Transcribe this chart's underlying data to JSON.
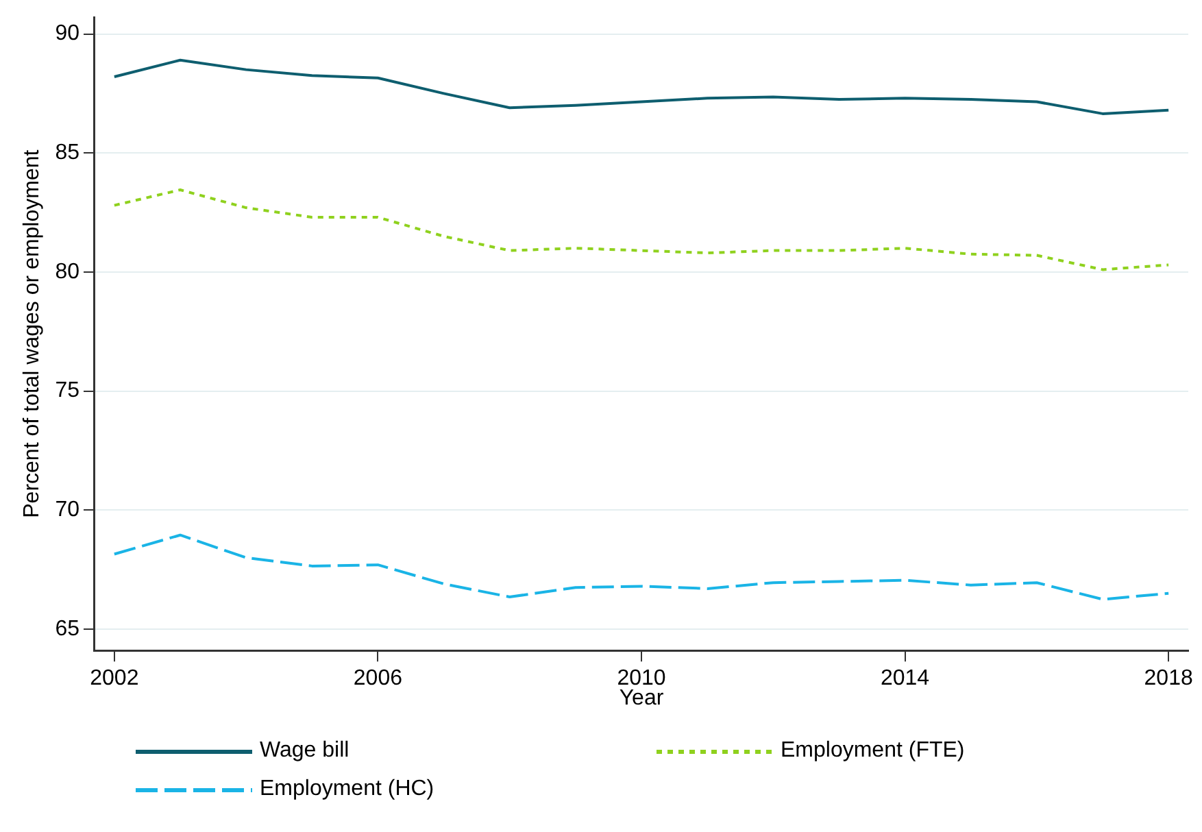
{
  "chart_data": {
    "type": "line",
    "xlabel": "Year",
    "ylabel": "Percent of total wages or employment",
    "x": [
      2002,
      2003,
      2004,
      2005,
      2006,
      2007,
      2008,
      2009,
      2010,
      2011,
      2012,
      2013,
      2014,
      2015,
      2016,
      2017,
      2018
    ],
    "series": [
      {
        "name": "Wage bill",
        "color": "#0e5e6f",
        "line_style": "solid",
        "values": [
          88.2,
          88.9,
          88.5,
          88.25,
          88.15,
          87.5,
          86.9,
          87.0,
          87.15,
          87.3,
          87.35,
          87.25,
          87.3,
          87.25,
          87.15,
          86.65,
          86.8
        ]
      },
      {
        "name": "Employment (FTE)",
        "color": "#8fd11e",
        "line_style": "dotted",
        "values": [
          82.8,
          83.45,
          82.7,
          82.3,
          82.3,
          81.5,
          80.9,
          81.0,
          80.9,
          80.8,
          80.9,
          80.9,
          81.0,
          80.75,
          80.7,
          80.1,
          80.3
        ]
      },
      {
        "name": "Employment (HC)",
        "color": "#1ab4e6",
        "line_style": "dashed",
        "values": [
          68.15,
          68.95,
          68.0,
          67.65,
          67.7,
          66.9,
          66.35,
          66.75,
          66.8,
          66.7,
          66.95,
          67.0,
          67.05,
          66.85,
          66.95,
          66.25,
          66.5
        ]
      }
    ],
    "xlim": [
      2001.7,
      2018.3
    ],
    "xticks": [
      2002,
      2006,
      2010,
      2014,
      2018
    ],
    "ylim": [
      64.1,
      90.7
    ],
    "yticks": [
      65,
      70,
      75,
      80,
      85,
      90
    ],
    "grid": "y",
    "legend": "bottom",
    "marker": "none"
  }
}
